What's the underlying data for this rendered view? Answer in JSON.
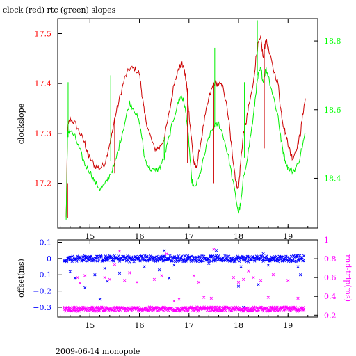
{
  "chart_data": [
    {
      "type": "line",
      "title": "clock (red) rtc (green) slopes",
      "ylabel": "clockslope",
      "y2label": "",
      "xlim": [
        14.35,
        19.6
      ],
      "ylim": [
        17.11,
        17.53
      ],
      "y2lim": [
        18.255,
        18.865
      ],
      "grid": false,
      "x_ticks": [
        15,
        16,
        17,
        18,
        19
      ],
      "x_tick_labels": [
        "15",
        "16",
        "17",
        "18",
        "19"
      ],
      "y_ticks": [
        17.2,
        17.3,
        17.4,
        17.5
      ],
      "y_tick_labels": [
        "17.2",
        "17.3",
        "17.4",
        "17.5"
      ],
      "y2_ticks": [
        18.4,
        18.6,
        18.8
      ],
      "y2_tick_labels": [
        "18.4",
        "18.6",
        "18.8"
      ],
      "colors": {
        "left_axis": "#ff0000",
        "right_axis": "#00ff00",
        "frame": "#000000"
      },
      "series": [
        {
          "color": "#cc0000",
          "axis": "left",
          "points": [
            [
              14.52,
              17.13
            ],
            [
              14.55,
              17.31
            ],
            [
              14.6,
              17.33
            ],
            [
              14.7,
              17.32
            ],
            [
              14.8,
              17.3
            ],
            [
              14.9,
              17.28
            ],
            [
              14.95,
              17.26
            ],
            [
              15.0,
              17.25
            ],
            [
              15.1,
              17.235
            ],
            [
              15.2,
              17.23
            ],
            [
              15.3,
              17.24
            ],
            [
              15.4,
              17.28
            ],
            [
              15.45,
              17.3
            ],
            [
              15.5,
              17.33
            ],
            [
              15.6,
              17.37
            ],
            [
              15.7,
              17.41
            ],
            [
              15.8,
              17.43
            ],
            [
              15.9,
              17.43
            ],
            [
              16.0,
              17.42
            ],
            [
              16.05,
              17.38
            ],
            [
              16.1,
              17.34
            ],
            [
              16.2,
              17.3
            ],
            [
              16.3,
              17.27
            ],
            [
              16.4,
              17.27
            ],
            [
              16.5,
              17.29
            ],
            [
              16.6,
              17.34
            ],
            [
              16.7,
              17.4
            ],
            [
              16.75,
              17.42
            ],
            [
              16.8,
              17.43
            ],
            [
              16.85,
              17.44
            ],
            [
              16.9,
              17.43
            ],
            [
              16.95,
              17.4
            ],
            [
              17.0,
              17.34
            ],
            [
              17.05,
              17.29
            ],
            [
              17.1,
              17.24
            ],
            [
              17.15,
              17.23
            ],
            [
              17.2,
              17.26
            ],
            [
              17.3,
              17.32
            ],
            [
              17.4,
              17.37
            ],
            [
              17.5,
              17.4
            ],
            [
              17.6,
              17.4
            ],
            [
              17.7,
              17.39
            ],
            [
              17.8,
              17.33
            ],
            [
              17.85,
              17.28
            ],
            [
              17.9,
              17.24
            ],
            [
              17.95,
              17.2
            ],
            [
              18.0,
              17.19
            ],
            [
              18.05,
              17.25
            ],
            [
              18.1,
              17.3
            ],
            [
              18.15,
              17.32
            ],
            [
              18.2,
              17.35
            ],
            [
              18.3,
              17.4
            ],
            [
              18.35,
              17.45
            ],
            [
              18.4,
              17.48
            ],
            [
              18.45,
              17.49
            ],
            [
              18.5,
              17.45
            ],
            [
              18.55,
              17.49
            ],
            [
              18.6,
              17.47
            ],
            [
              18.7,
              17.43
            ],
            [
              18.8,
              17.4
            ],
            [
              18.85,
              17.35
            ],
            [
              18.9,
              17.32
            ],
            [
              18.95,
              17.3
            ],
            [
              19.0,
              17.28
            ],
            [
              19.05,
              17.26
            ],
            [
              19.1,
              17.25
            ],
            [
              19.2,
              17.28
            ],
            [
              19.25,
              17.3
            ],
            [
              19.3,
              17.34
            ],
            [
              19.35,
              17.37
            ]
          ]
        },
        {
          "color": "#00ee00",
          "axis": "right",
          "points": [
            [
              14.52,
              18.28
            ],
            [
              14.55,
              18.53
            ],
            [
              14.6,
              18.54
            ],
            [
              14.7,
              18.52
            ],
            [
              14.8,
              18.48
            ],
            [
              14.9,
              18.44
            ],
            [
              15.0,
              18.42
            ],
            [
              15.1,
              18.39
            ],
            [
              15.2,
              18.37
            ],
            [
              15.3,
              18.38
            ],
            [
              15.4,
              18.41
            ],
            [
              15.5,
              18.44
            ],
            [
              15.6,
              18.5
            ],
            [
              15.7,
              18.56
            ],
            [
              15.8,
              18.62
            ],
            [
              15.9,
              18.6
            ],
            [
              16.0,
              18.56
            ],
            [
              16.05,
              18.52
            ],
            [
              16.1,
              18.46
            ],
            [
              16.2,
              18.43
            ],
            [
              16.3,
              18.42
            ],
            [
              16.4,
              18.43
            ],
            [
              16.5,
              18.46
            ],
            [
              16.6,
              18.52
            ],
            [
              16.7,
              18.58
            ],
            [
              16.8,
              18.63
            ],
            [
              16.85,
              18.64
            ],
            [
              16.9,
              18.62
            ],
            [
              16.95,
              18.58
            ],
            [
              17.0,
              18.5
            ],
            [
              17.05,
              18.4
            ],
            [
              17.1,
              18.37
            ],
            [
              17.2,
              18.4
            ],
            [
              17.3,
              18.46
            ],
            [
              17.4,
              18.52
            ],
            [
              17.5,
              18.55
            ],
            [
              17.6,
              18.56
            ],
            [
              17.7,
              18.52
            ],
            [
              17.8,
              18.46
            ],
            [
              17.9,
              18.38
            ],
            [
              18.0,
              18.3
            ],
            [
              18.05,
              18.33
            ],
            [
              18.1,
              18.4
            ],
            [
              18.2,
              18.48
            ],
            [
              18.3,
              18.58
            ],
            [
              18.35,
              18.65
            ],
            [
              18.4,
              18.7
            ],
            [
              18.45,
              18.72
            ],
            [
              18.5,
              18.68
            ],
            [
              18.55,
              18.72
            ],
            [
              18.6,
              18.7
            ],
            [
              18.7,
              18.64
            ],
            [
              18.8,
              18.58
            ],
            [
              18.85,
              18.52
            ],
            [
              18.9,
              18.48
            ],
            [
              18.95,
              18.45
            ],
            [
              19.0,
              18.43
            ],
            [
              19.1,
              18.42
            ],
            [
              19.2,
              18.44
            ],
            [
              19.3,
              18.5
            ],
            [
              19.35,
              18.53
            ]
          ]
        }
      ],
      "spikes": [
        {
          "axis": "left",
          "color": "#cc0000",
          "x": 14.55,
          "from": 17.2,
          "to": 17.13
        },
        {
          "axis": "left",
          "color": "#cc0000",
          "x": 15.5,
          "from": 17.33,
          "to": 17.22
        },
        {
          "axis": "left",
          "color": "#cc0000",
          "x": 16.97,
          "from": 17.39,
          "to": 17.24
        },
        {
          "axis": "left",
          "color": "#cc0000",
          "x": 17.5,
          "from": 17.4,
          "to": 17.2
        },
        {
          "axis": "left",
          "color": "#cc0000",
          "x": 18.52,
          "from": 17.48,
          "to": 17.27
        },
        {
          "axis": "right",
          "color": "#00ee00",
          "x": 14.56,
          "from": 18.52,
          "to": 18.68
        },
        {
          "axis": "right",
          "color": "#00ee00",
          "x": 15.42,
          "from": 18.45,
          "to": 18.7
        },
        {
          "axis": "right",
          "color": "#00ee00",
          "x": 16.5,
          "from": 18.46,
          "to": 18.52
        },
        {
          "axis": "right",
          "color": "#00ee00",
          "x": 17.52,
          "from": 18.55,
          "to": 18.78
        },
        {
          "axis": "right",
          "color": "#00ee00",
          "x": 18.38,
          "from": 18.7,
          "to": 18.86
        },
        {
          "axis": "right",
          "color": "#00ee00",
          "x": 18.12,
          "from": 18.46,
          "to": 18.68
        }
      ]
    },
    {
      "type": "scatter",
      "ylabel": "offset(ms)",
      "y2label": "rnd-trip(ms)",
      "xlim": [
        14.35,
        19.6
      ],
      "ylim": [
        -0.36,
        0.115
      ],
      "y2lim": [
        0.18,
        1.0
      ],
      "grid": false,
      "x_ticks": [
        15,
        16,
        17,
        18,
        19
      ],
      "x_tick_labels": [
        "15",
        "16",
        "17",
        "18",
        "19"
      ],
      "y_ticks": [
        0.1,
        0,
        -0.1,
        -0.2,
        -0.3
      ],
      "y_tick_labels": [
        "0.1",
        "0",
        "−0.1",
        "−0.2",
        "−0.3"
      ],
      "y2_ticks": [
        1,
        0.8,
        0.6,
        0.4,
        0.2
      ],
      "y2_tick_labels": [
        "1",
        "0.8",
        "0.6",
        "0.4",
        "0.2"
      ],
      "colors": {
        "left_axis": "#0000ff",
        "right_axis": "#ff00ff",
        "frame": "#000000"
      },
      "series": [
        {
          "color": "#0000ff",
          "axis": "left",
          "marker": "x",
          "band": {
            "x_from": 14.48,
            "x_to": 19.32,
            "center": 0.0,
            "spread": 0.018,
            "count": 420
          },
          "outliers": [
            [
              14.6,
              -0.08
            ],
            [
              14.7,
              -0.12
            ],
            [
              14.9,
              -0.18
            ],
            [
              15.1,
              -0.1
            ],
            [
              15.2,
              -0.25
            ],
            [
              15.3,
              -0.06
            ],
            [
              15.35,
              -0.14
            ],
            [
              15.6,
              -0.09
            ],
            [
              15.8,
              -0.02
            ],
            [
              16.1,
              -0.05
            ],
            [
              16.4,
              -0.07
            ],
            [
              16.5,
              0.05
            ],
            [
              16.6,
              -0.12
            ],
            [
              16.7,
              -0.04
            ],
            [
              17.4,
              -0.03
            ],
            [
              17.55,
              0.05
            ],
            [
              18.0,
              -0.17
            ],
            [
              18.05,
              -0.05
            ],
            [
              18.1,
              -0.3
            ],
            [
              18.2,
              -0.02
            ],
            [
              18.4,
              -0.16
            ],
            [
              18.5,
              0.03
            ],
            [
              18.6,
              -0.04
            ],
            [
              19.2,
              -0.05
            ],
            [
              19.25,
              -0.1
            ]
          ]
        },
        {
          "color": "#ff00ff",
          "axis": "right",
          "marker": "x",
          "band": {
            "x_from": 14.48,
            "x_to": 19.32,
            "center": 0.265,
            "spread": 0.022,
            "count": 420
          },
          "outliers": [
            [
              14.75,
              0.6
            ],
            [
              14.8,
              0.54
            ],
            [
              14.9,
              0.62
            ],
            [
              15.3,
              0.6
            ],
            [
              15.4,
              0.58
            ],
            [
              15.5,
              0.74
            ],
            [
              15.6,
              0.88
            ],
            [
              15.7,
              0.57
            ],
            [
              15.8,
              0.65
            ],
            [
              15.95,
              0.55
            ],
            [
              16.3,
              0.58
            ],
            [
              16.45,
              0.62
            ],
            [
              16.55,
              0.85
            ],
            [
              16.7,
              0.35
            ],
            [
              16.8,
              0.37
            ],
            [
              17.1,
              0.62
            ],
            [
              17.2,
              0.55
            ],
            [
              17.3,
              0.39
            ],
            [
              17.45,
              0.38
            ],
            [
              17.5,
              0.9
            ],
            [
              17.9,
              0.6
            ],
            [
              18.0,
              0.55
            ],
            [
              18.1,
              0.58
            ],
            [
              18.2,
              0.67
            ],
            [
              18.3,
              0.6
            ],
            [
              18.45,
              0.57
            ],
            [
              18.6,
              0.39
            ],
            [
              18.7,
              0.63
            ],
            [
              19.0,
              0.57
            ],
            [
              19.2,
              0.38
            ]
          ]
        }
      ]
    }
  ],
  "footer": {
    "caption": "2009-06-14 monopole"
  }
}
